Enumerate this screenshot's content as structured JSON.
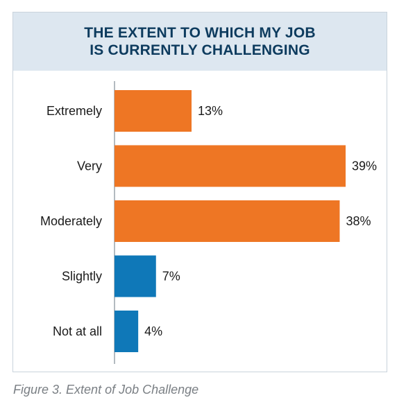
{
  "chart_data": {
    "type": "bar",
    "orientation": "horizontal",
    "title_lines": [
      "THE EXTENT TO WHICH MY JOB",
      "IS CURRENTLY CHALLENGING"
    ],
    "categories": [
      "Extremely",
      "Very",
      "Moderately",
      "Slightly",
      "Not at all"
    ],
    "values": [
      13,
      39,
      38,
      7,
      4
    ],
    "value_labels": [
      "13%",
      "39%",
      "38%",
      "7%",
      "4%"
    ],
    "bar_colors": [
      "#ee7624",
      "#ee7624",
      "#ee7624",
      "#0f78b8",
      "#0f78b8"
    ],
    "xlim": [
      0,
      39
    ],
    "grid": false,
    "legend": "none"
  },
  "colors": {
    "orange": "#ee7624",
    "blue": "#0f78b8",
    "title": "#0d3b5e",
    "header_bg": "#dde7f0"
  },
  "caption": "Figure 3. Extent of Job Challenge"
}
